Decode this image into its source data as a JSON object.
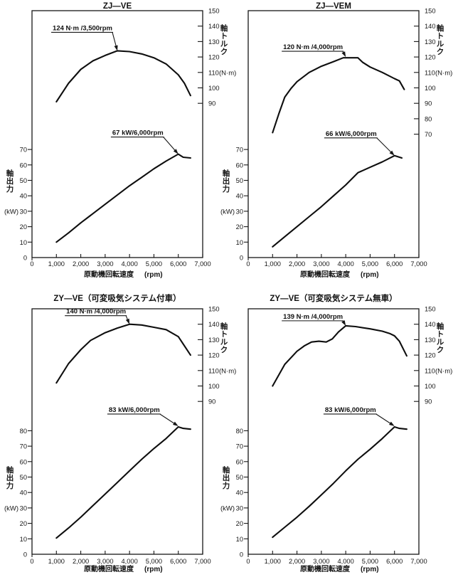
{
  "page": {
    "background": "#ffffff",
    "ink": "#161616"
  },
  "axes": {
    "x": {
      "label": "原動機回転速度",
      "unit": "(rpm)",
      "ticks": [
        "0",
        "1,000",
        "2,000",
        "3,000",
        "4,000",
        "5,000",
        "6,000",
        "7,000"
      ],
      "values": [
        0,
        1000,
        2000,
        3000,
        4000,
        5000,
        6000,
        7000
      ],
      "range": [
        0,
        7000
      ]
    },
    "power": {
      "title": "軸出力",
      "title_chars": [
        "軸",
        "出",
        "力"
      ],
      "unit": "(kW)"
    },
    "torque": {
      "title": "軸トルク",
      "title_chars": [
        "軸",
        "ト",
        "ル",
        "ク"
      ],
      "unit": "(N·m)"
    }
  },
  "chart_data": [
    {
      "type": "line",
      "title": "ZJ—VE",
      "xlabel": "原動機回転速度 (rpm)",
      "xlim": [
        0,
        7000
      ],
      "power_ticks": [
        0,
        10,
        20,
        30,
        40,
        50,
        60,
        70
      ],
      "torque_ticks": [
        150,
        140,
        130,
        120,
        110,
        100,
        90
      ],
      "annotations": [
        {
          "series": "torque",
          "label": "124 N·m /3,500rpm",
          "rpm": 3500,
          "value": 124,
          "offset": [
            -7,
            -26
          ]
        },
        {
          "series": "power",
          "label": "67 kW/6,000rpm",
          "rpm": 6000,
          "value": 67,
          "offset": [
            -21,
            -24
          ]
        }
      ],
      "series": [
        {
          "name": "torque",
          "unit": "N·m",
          "points": [
            [
              1000,
              91
            ],
            [
              1500,
              103
            ],
            [
              2000,
              112
            ],
            [
              2500,
              117.5
            ],
            [
              3000,
              121
            ],
            [
              3500,
              124
            ],
            [
              4000,
              123.5
            ],
            [
              4500,
              122
            ],
            [
              5000,
              119.5
            ],
            [
              5500,
              115.5
            ],
            [
              6000,
              108.5
            ],
            [
              6250,
              103
            ],
            [
              6500,
              95
            ]
          ]
        },
        {
          "name": "power",
          "unit": "kW",
          "points": [
            [
              1000,
              10
            ],
            [
              1500,
              16
            ],
            [
              2000,
              22.5
            ],
            [
              2500,
              28.5
            ],
            [
              3000,
              34.5
            ],
            [
              3500,
              40.5
            ],
            [
              4000,
              46.5
            ],
            [
              4500,
              52
            ],
            [
              5000,
              57.5
            ],
            [
              5500,
              62.5
            ],
            [
              6000,
              67
            ],
            [
              6200,
              65
            ],
            [
              6500,
              64.5
            ]
          ]
        }
      ]
    },
    {
      "type": "line",
      "title": "ZJ—VEM",
      "xlabel": "原動機回転速度 (rpm)",
      "xlim": [
        0,
        7000
      ],
      "power_ticks": [
        0,
        10,
        20,
        30,
        40,
        50,
        60,
        70
      ],
      "torque_ticks": [
        150,
        140,
        130,
        120,
        110,
        100,
        90,
        80,
        70
      ],
      "annotations": [
        {
          "series": "torque",
          "label": "120 N·m /4,000rpm",
          "rpm": 4000,
          "value": 120,
          "offset": [
            -4,
            -8
          ]
        },
        {
          "series": "power",
          "label": "66 kW/6,000rpm",
          "rpm": 6000,
          "value": 66,
          "offset": [
            -25,
            -25
          ]
        }
      ],
      "series": [
        {
          "name": "torque",
          "unit": "N·m",
          "points": [
            [
              1000,
              71
            ],
            [
              1250,
              83
            ],
            [
              1500,
              94
            ],
            [
              1750,
              99.5
            ],
            [
              2000,
              104
            ],
            [
              2500,
              110
            ],
            [
              3000,
              114
            ],
            [
              3500,
              117
            ],
            [
              3900,
              119.5
            ],
            [
              4500,
              119.5
            ],
            [
              4700,
              116.5
            ],
            [
              5000,
              113.5
            ],
            [
              5500,
              110
            ],
            [
              6000,
              106
            ],
            [
              6200,
              104.5
            ],
            [
              6400,
              99
            ]
          ]
        },
        {
          "name": "power",
          "unit": "kW",
          "points": [
            [
              1000,
              7
            ],
            [
              1500,
              13.5
            ],
            [
              2000,
              20
            ],
            [
              2500,
              26.5
            ],
            [
              3000,
              33
            ],
            [
              3500,
              40
            ],
            [
              4000,
              47
            ],
            [
              4500,
              55
            ],
            [
              5000,
              58.5
            ],
            [
              5500,
              62
            ],
            [
              6000,
              66
            ],
            [
              6300,
              64.5
            ]
          ]
        }
      ]
    },
    {
      "type": "line",
      "title": "ZY—VE（可変吸気システム付車）",
      "xlabel": "原動機回転速度 (rpm)",
      "xlim": [
        0,
        7000
      ],
      "power_ticks": [
        0,
        10,
        20,
        30,
        40,
        50,
        60,
        70,
        80
      ],
      "torque_ticks": [
        150,
        140,
        130,
        120,
        110,
        100,
        90
      ],
      "annotations": [
        {
          "series": "torque",
          "label": "140 N·m /4,000rpm",
          "rpm": 4000,
          "value": 140,
          "offset": [
            -5,
            -12
          ]
        },
        {
          "series": "power",
          "label": "83 kW/6,000rpm",
          "rpm": 6000,
          "value": 83,
          "offset": [
            -26,
            -17
          ]
        }
      ],
      "series": [
        {
          "name": "torque",
          "unit": "N·m",
          "points": [
            [
              1000,
              102
            ],
            [
              1500,
              114.5
            ],
            [
              2000,
              123.5
            ],
            [
              2400,
              129.5
            ],
            [
              3000,
              134.5
            ],
            [
              3500,
              137.5
            ],
            [
              4000,
              140
            ],
            [
              4500,
              139.5
            ],
            [
              5000,
              138
            ],
            [
              5500,
              136.5
            ],
            [
              6000,
              132
            ],
            [
              6500,
              120
            ]
          ]
        },
        {
          "name": "power",
          "unit": "kW",
          "points": [
            [
              1000,
              10.5
            ],
            [
              1500,
              17
            ],
            [
              2000,
              24
            ],
            [
              2500,
              31.5
            ],
            [
              3000,
              39
            ],
            [
              3500,
              46.5
            ],
            [
              4000,
              54
            ],
            [
              4500,
              61.5
            ],
            [
              5000,
              68.5
            ],
            [
              5500,
              75
            ],
            [
              6000,
              82.5
            ],
            [
              6200,
              81.5
            ],
            [
              6500,
              81
            ]
          ]
        }
      ]
    },
    {
      "type": "line",
      "title": "ZY—VE（可変吸気システム無車）",
      "xlabel": "原動機回転速度 (rpm)",
      "xlim": [
        0,
        7000
      ],
      "power_ticks": [
        0,
        10,
        20,
        30,
        40,
        50,
        60,
        70,
        80
      ],
      "torque_ticks": [
        150,
        140,
        130,
        120,
        110,
        100,
        90
      ],
      "annotations": [
        {
          "series": "torque",
          "label": "139 N·m /4,000rpm",
          "rpm": 4000,
          "value": 139,
          "offset": [
            -4,
            -7
          ]
        },
        {
          "series": "power",
          "label": "83 kW/6,000rpm",
          "rpm": 6000,
          "value": 83,
          "offset": [
            -26,
            -17
          ]
        }
      ],
      "series": [
        {
          "name": "torque",
          "unit": "N·m",
          "points": [
            [
              1000,
              100
            ],
            [
              1500,
              114
            ],
            [
              2000,
              122.5
            ],
            [
              2300,
              126
            ],
            [
              2600,
              128.5
            ],
            [
              2900,
              129
            ],
            [
              3200,
              128.5
            ],
            [
              3450,
              130.5
            ],
            [
              3700,
              135
            ],
            [
              4000,
              139
            ],
            [
              4400,
              138.5
            ],
            [
              5000,
              137
            ],
            [
              5500,
              135.5
            ],
            [
              5800,
              134
            ],
            [
              6000,
              132.5
            ],
            [
              6200,
              129
            ],
            [
              6500,
              119.5
            ]
          ]
        },
        {
          "name": "power",
          "unit": "kW",
          "points": [
            [
              1000,
              11
            ],
            [
              1500,
              17.5
            ],
            [
              2000,
              24
            ],
            [
              2500,
              31
            ],
            [
              3000,
              38.5
            ],
            [
              3500,
              46
            ],
            [
              4000,
              54
            ],
            [
              4500,
              61.5
            ],
            [
              5000,
              68
            ],
            [
              5500,
              75
            ],
            [
              6000,
              82.5
            ],
            [
              6200,
              81.5
            ],
            [
              6500,
              81
            ]
          ]
        }
      ]
    }
  ]
}
